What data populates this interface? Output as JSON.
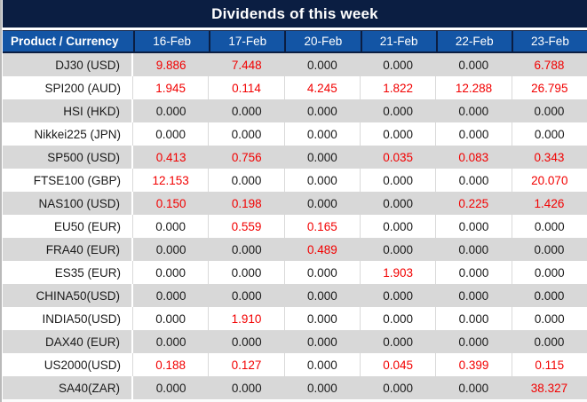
{
  "title": "Dividends of this week",
  "colors": {
    "title_bar_bg": "#0b1e42",
    "header_bg": "#1355a5",
    "header_border": "#0b1e42",
    "stripe_gray": "#d8d8d8",
    "grid_line": "#d9d9d9",
    "text_black": "#1a1a1a",
    "value_red": "#f20000"
  },
  "chart_data": {
    "type": "table",
    "title": "Dividends of this week",
    "columns": [
      "Product / Currency",
      "16-Feb",
      "17-Feb",
      "20-Feb",
      "21-Feb",
      "22-Feb",
      "23-Feb"
    ],
    "rows": [
      {
        "label": "DJ30 (USD)",
        "values": [
          "9.886",
          "7.448",
          "0.000",
          "0.000",
          "0.000",
          "6.788"
        ]
      },
      {
        "label": "SPI200 (AUD)",
        "values": [
          "1.945",
          "0.114",
          "4.245",
          "1.822",
          "12.288",
          "26.795"
        ]
      },
      {
        "label": "HSI (HKD)",
        "values": [
          "0.000",
          "0.000",
          "0.000",
          "0.000",
          "0.000",
          "0.000"
        ]
      },
      {
        "label": "Nikkei225 (JPN)",
        "values": [
          "0.000",
          "0.000",
          "0.000",
          "0.000",
          "0.000",
          "0.000"
        ]
      },
      {
        "label": "SP500 (USD)",
        "values": [
          "0.413",
          "0.756",
          "0.000",
          "0.035",
          "0.083",
          "0.343"
        ]
      },
      {
        "label": "FTSE100 (GBP)",
        "values": [
          "12.153",
          "0.000",
          "0.000",
          "0.000",
          "0.000",
          "20.070"
        ]
      },
      {
        "label": "NAS100 (USD)",
        "values": [
          "0.150",
          "0.198",
          "0.000",
          "0.000",
          "0.225",
          "1.426"
        ]
      },
      {
        "label": "EU50 (EUR)",
        "values": [
          "0.000",
          "0.559",
          "0.165",
          "0.000",
          "0.000",
          "0.000"
        ]
      },
      {
        "label": "FRA40 (EUR)",
        "values": [
          "0.000",
          "0.000",
          "0.489",
          "0.000",
          "0.000",
          "0.000"
        ]
      },
      {
        "label": "ES35 (EUR)",
        "values": [
          "0.000",
          "0.000",
          "0.000",
          "1.903",
          "0.000",
          "0.000"
        ]
      },
      {
        "label": "CHINA50(USD)",
        "values": [
          "0.000",
          "0.000",
          "0.000",
          "0.000",
          "0.000",
          "0.000"
        ]
      },
      {
        "label": "INDIA50(USD)",
        "values": [
          "0.000",
          "1.910",
          "0.000",
          "0.000",
          "0.000",
          "0.000"
        ]
      },
      {
        "label": "DAX40 (EUR)",
        "values": [
          "0.000",
          "0.000",
          "0.000",
          "0.000",
          "0.000",
          "0.000"
        ]
      },
      {
        "label": "US2000(USD)",
        "values": [
          "0.188",
          "0.127",
          "0.000",
          "0.045",
          "0.399",
          "0.115"
        ]
      },
      {
        "label": "SA40(ZAR)",
        "values": [
          "0.000",
          "0.000",
          "0.000",
          "0.000",
          "0.000",
          "38.327"
        ]
      }
    ],
    "style_note": "non-zero values rendered red, zero values black; even rows gray-striped",
    "layout": {
      "grid": "on",
      "first_column_align": "right",
      "value_align": "center"
    }
  }
}
